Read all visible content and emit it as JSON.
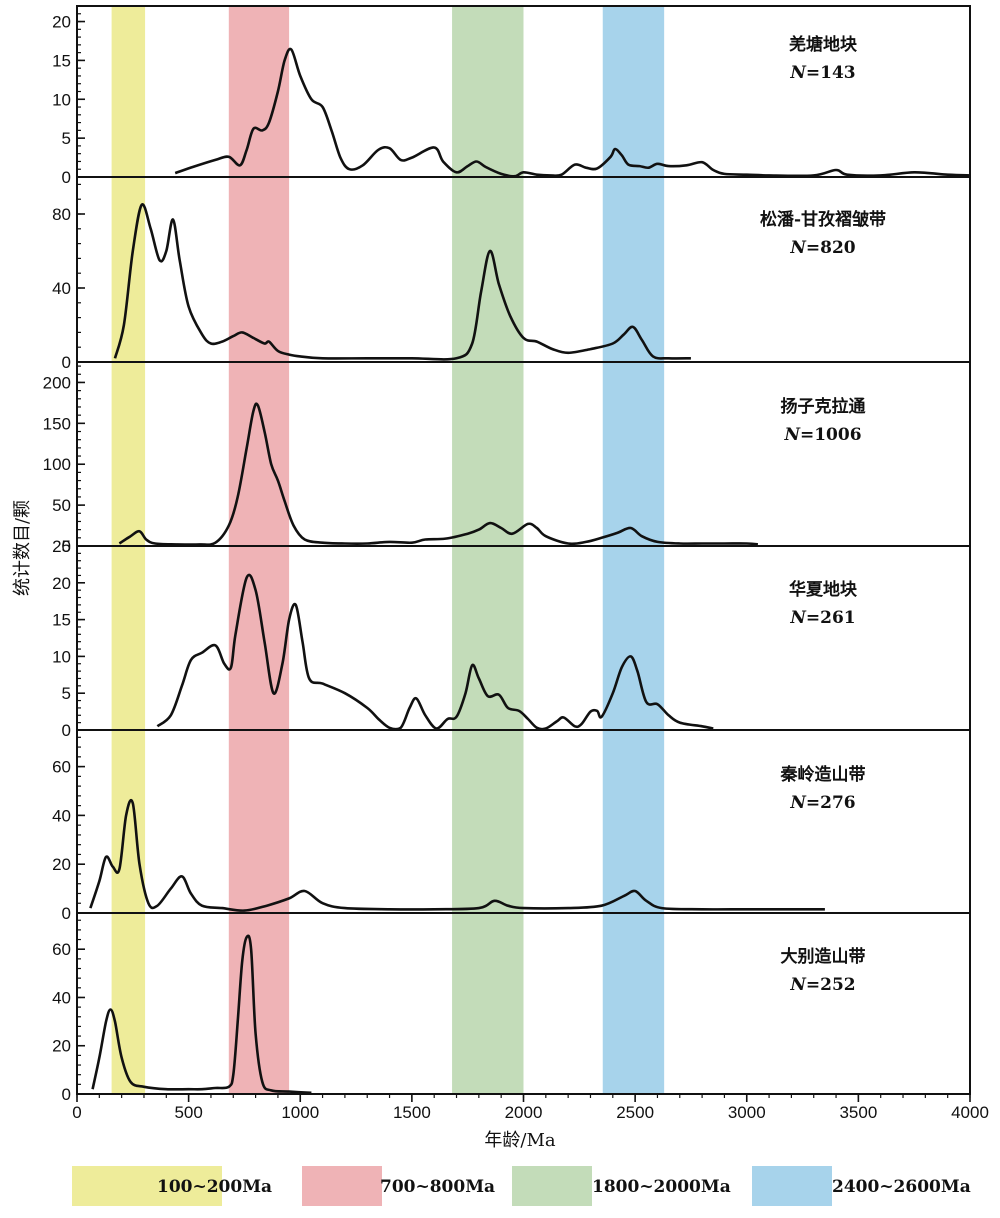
{
  "chart_data": {
    "type": "line",
    "xlabel": "年龄/Ma",
    "ylabel": "统计数目/颗",
    "xlim": [
      0,
      4000
    ],
    "x_ticks": [
      0,
      500,
      1000,
      1500,
      2000,
      2500,
      3000,
      3500,
      4000
    ],
    "bands": [
      {
        "label": "100~200Ma",
        "range": [
          155,
          305
        ],
        "color": "#eeec9a"
      },
      {
        "label": "700~800Ma",
        "range": [
          680,
          950
        ],
        "color": "#efb3b6"
      },
      {
        "label": "1800~2000Ma",
        "range": [
          1680,
          2000
        ],
        "color": "#c3dcb9"
      },
      {
        "label": "2400~2600Ma",
        "range": [
          2355,
          2630
        ],
        "color": "#a7d3eb"
      }
    ],
    "panels": [
      {
        "name": "羌塘地块",
        "n_label": "N",
        "n_value": "=143",
        "ylim": [
          0,
          22
        ],
        "y_ticks": [
          0,
          5,
          10,
          15,
          20
        ],
        "curve": [
          [
            440,
            0.5
          ],
          [
            520,
            1.3
          ],
          [
            620,
            2.2
          ],
          [
            680,
            2.6
          ],
          [
            730,
            1.5
          ],
          [
            760,
            3.5
          ],
          [
            790,
            6.2
          ],
          [
            830,
            6.0
          ],
          [
            860,
            7.0
          ],
          [
            900,
            11
          ],
          [
            930,
            15
          ],
          [
            960,
            16.4
          ],
          [
            1000,
            13
          ],
          [
            1050,
            10
          ],
          [
            1100,
            9
          ],
          [
            1140,
            6
          ],
          [
            1180,
            2.5
          ],
          [
            1220,
            1
          ],
          [
            1280,
            1.5
          ],
          [
            1350,
            3.5
          ],
          [
            1400,
            3.7
          ],
          [
            1450,
            2.2
          ],
          [
            1500,
            2.5
          ],
          [
            1600,
            3.8
          ],
          [
            1640,
            2
          ],
          [
            1700,
            0.6
          ],
          [
            1750,
            1.4
          ],
          [
            1790,
            2
          ],
          [
            1830,
            1.3
          ],
          [
            1900,
            0.4
          ],
          [
            1960,
            0.1
          ],
          [
            2000,
            0.6
          ],
          [
            2060,
            0.3
          ],
          [
            2120,
            0.2
          ],
          [
            2170,
            0.3
          ],
          [
            2230,
            1.6
          ],
          [
            2280,
            1.2
          ],
          [
            2330,
            1.1
          ],
          [
            2390,
            2.6
          ],
          [
            2410,
            3.6
          ],
          [
            2440,
            2.8
          ],
          [
            2470,
            1.6
          ],
          [
            2520,
            1.4
          ],
          [
            2560,
            1.2
          ],
          [
            2600,
            1.7
          ],
          [
            2650,
            1.4
          ],
          [
            2730,
            1.5
          ],
          [
            2800,
            1.9
          ],
          [
            2850,
            0.9
          ],
          [
            2900,
            0.4
          ],
          [
            3000,
            0.3
          ],
          [
            3100,
            0.2
          ],
          [
            3300,
            0.2
          ],
          [
            3400,
            0.9
          ],
          [
            3450,
            0.3
          ],
          [
            3600,
            0.2
          ],
          [
            3750,
            0.6
          ],
          [
            3900,
            0.3
          ],
          [
            4000,
            0.2
          ]
        ]
      },
      {
        "name": "松潘-甘孜褶皱带",
        "n_label": "N",
        "n_value": "=820",
        "ylim": [
          0,
          100
        ],
        "y_ticks": [
          0,
          40,
          80
        ],
        "curve": [
          [
            170,
            2
          ],
          [
            210,
            20
          ],
          [
            250,
            60
          ],
          [
            290,
            85
          ],
          [
            330,
            72
          ],
          [
            370,
            55
          ],
          [
            400,
            60
          ],
          [
            430,
            77
          ],
          [
            460,
            55
          ],
          [
            500,
            30
          ],
          [
            560,
            15
          ],
          [
            600,
            10
          ],
          [
            650,
            11
          ],
          [
            700,
            14
          ],
          [
            740,
            16
          ],
          [
            790,
            13
          ],
          [
            840,
            10
          ],
          [
            860,
            11
          ],
          [
            900,
            6
          ],
          [
            950,
            4
          ],
          [
            1000,
            3
          ],
          [
            1100,
            2
          ],
          [
            1300,
            2
          ],
          [
            1500,
            2
          ],
          [
            1700,
            2
          ],
          [
            1770,
            10
          ],
          [
            1810,
            38
          ],
          [
            1850,
            60
          ],
          [
            1890,
            42
          ],
          [
            1940,
            25
          ],
          [
            2000,
            13
          ],
          [
            2060,
            11
          ],
          [
            2130,
            7
          ],
          [
            2200,
            5
          ],
          [
            2300,
            7
          ],
          [
            2400,
            10
          ],
          [
            2450,
            15
          ],
          [
            2490,
            19
          ],
          [
            2530,
            12
          ],
          [
            2580,
            3
          ],
          [
            2650,
            2
          ],
          [
            2750,
            2
          ]
        ]
      },
      {
        "name": "扬子克拉通",
        "n_label": "N",
        "n_value": "=1006",
        "ylim": [
          0,
          225
        ],
        "y_ticks": [
          0,
          50,
          100,
          150,
          200
        ],
        "curve": [
          [
            190,
            3
          ],
          [
            240,
            12
          ],
          [
            280,
            18
          ],
          [
            310,
            8
          ],
          [
            350,
            3
          ],
          [
            450,
            2
          ],
          [
            550,
            2
          ],
          [
            620,
            4
          ],
          [
            680,
            25
          ],
          [
            720,
            60
          ],
          [
            760,
            120
          ],
          [
            790,
            165
          ],
          [
            810,
            172
          ],
          [
            840,
            140
          ],
          [
            870,
            100
          ],
          [
            900,
            80
          ],
          [
            930,
            55
          ],
          [
            970,
            25
          ],
          [
            1020,
            8
          ],
          [
            1100,
            4
          ],
          [
            1200,
            3
          ],
          [
            1300,
            3
          ],
          [
            1400,
            5
          ],
          [
            1500,
            4
          ],
          [
            1560,
            8
          ],
          [
            1650,
            9
          ],
          [
            1750,
            15
          ],
          [
            1800,
            20
          ],
          [
            1850,
            28
          ],
          [
            1900,
            22
          ],
          [
            1950,
            15
          ],
          [
            2020,
            27
          ],
          [
            2060,
            22
          ],
          [
            2100,
            12
          ],
          [
            2200,
            3
          ],
          [
            2280,
            5
          ],
          [
            2350,
            10
          ],
          [
            2420,
            16
          ],
          [
            2480,
            22
          ],
          [
            2530,
            12
          ],
          [
            2600,
            5
          ],
          [
            2700,
            3
          ],
          [
            2800,
            3
          ],
          [
            2900,
            3
          ],
          [
            3000,
            3
          ],
          [
            3050,
            2
          ]
        ]
      },
      {
        "name": "华夏地块",
        "n_label": "N",
        "n_value": "=261",
        "ylim": [
          0,
          25
        ],
        "y_ticks": [
          0,
          5,
          10,
          15,
          20,
          25
        ],
        "curve": [
          [
            360,
            0.5
          ],
          [
            420,
            2
          ],
          [
            470,
            6
          ],
          [
            510,
            9.5
          ],
          [
            560,
            10.5
          ],
          [
            620,
            11.5
          ],
          [
            660,
            9
          ],
          [
            690,
            8.5
          ],
          [
            710,
            13
          ],
          [
            760,
            20.7
          ],
          [
            800,
            19
          ],
          [
            840,
            12
          ],
          [
            880,
            5
          ],
          [
            920,
            9
          ],
          [
            950,
            15
          ],
          [
            980,
            17
          ],
          [
            1010,
            12
          ],
          [
            1040,
            7
          ],
          [
            1100,
            6.3
          ],
          [
            1200,
            5
          ],
          [
            1300,
            3
          ],
          [
            1350,
            1.5
          ],
          [
            1400,
            0.3
          ],
          [
            1450,
            0.3
          ],
          [
            1490,
            3
          ],
          [
            1520,
            4.3
          ],
          [
            1560,
            2
          ],
          [
            1610,
            0.2
          ],
          [
            1660,
            1.5
          ],
          [
            1700,
            1.8
          ],
          [
            1740,
            5
          ],
          [
            1770,
            8.8
          ],
          [
            1800,
            7
          ],
          [
            1840,
            4.6
          ],
          [
            1890,
            4.8
          ],
          [
            1930,
            3
          ],
          [
            1980,
            2.6
          ],
          [
            2020,
            1.5
          ],
          [
            2060,
            0.3
          ],
          [
            2100,
            0.2
          ],
          [
            2150,
            1.2
          ],
          [
            2180,
            1.7
          ],
          [
            2230,
            0.5
          ],
          [
            2260,
            0.8
          ],
          [
            2300,
            2.5
          ],
          [
            2330,
            2.6
          ],
          [
            2350,
            1.8
          ],
          [
            2400,
            5
          ],
          [
            2440,
            8.5
          ],
          [
            2480,
            10
          ],
          [
            2510,
            8
          ],
          [
            2550,
            3.8
          ],
          [
            2600,
            3.5
          ],
          [
            2650,
            2
          ],
          [
            2700,
            1
          ],
          [
            2800,
            0.5
          ],
          [
            2850,
            0.2
          ]
        ]
      },
      {
        "name": "秦岭造山带",
        "n_label": "N",
        "n_value": "=276",
        "ylim": [
          0,
          75
        ],
        "y_ticks": [
          0,
          20,
          40,
          60
        ],
        "curve": [
          [
            60,
            2
          ],
          [
            100,
            13
          ],
          [
            130,
            23
          ],
          [
            160,
            19
          ],
          [
            190,
            18
          ],
          [
            220,
            40
          ],
          [
            250,
            45
          ],
          [
            280,
            20
          ],
          [
            320,
            4
          ],
          [
            360,
            3
          ],
          [
            420,
            10
          ],
          [
            470,
            15
          ],
          [
            510,
            8
          ],
          [
            560,
            3
          ],
          [
            650,
            2
          ],
          [
            750,
            1
          ],
          [
            850,
            3
          ],
          [
            950,
            6
          ],
          [
            1020,
            9
          ],
          [
            1100,
            4
          ],
          [
            1200,
            2
          ],
          [
            1400,
            1.5
          ],
          [
            1600,
            1.5
          ],
          [
            1800,
            2
          ],
          [
            1870,
            5
          ],
          [
            1930,
            3
          ],
          [
            2000,
            2
          ],
          [
            2200,
            2
          ],
          [
            2350,
            3
          ],
          [
            2450,
            7
          ],
          [
            2500,
            9
          ],
          [
            2550,
            5
          ],
          [
            2620,
            2
          ],
          [
            2800,
            1.5
          ],
          [
            3000,
            1.5
          ],
          [
            3200,
            1.5
          ],
          [
            3350,
            1.5
          ]
        ]
      },
      {
        "name": "大别造山带",
        "n_label": "N",
        "n_value": "=252",
        "ylim": [
          0,
          75
        ],
        "y_ticks": [
          0,
          20,
          40,
          60
        ],
        "curve": [
          [
            70,
            2
          ],
          [
            100,
            15
          ],
          [
            130,
            30
          ],
          [
            150,
            35
          ],
          [
            170,
            30
          ],
          [
            200,
            15
          ],
          [
            240,
            5
          ],
          [
            300,
            3
          ],
          [
            400,
            2
          ],
          [
            500,
            2
          ],
          [
            560,
            2
          ],
          [
            620,
            2.5
          ],
          [
            680,
            3
          ],
          [
            700,
            8
          ],
          [
            720,
            30
          ],
          [
            740,
            55
          ],
          [
            760,
            65
          ],
          [
            780,
            60
          ],
          [
            800,
            25
          ],
          [
            830,
            5
          ],
          [
            870,
            1.5
          ],
          [
            950,
            1
          ],
          [
            1050,
            0.5
          ]
        ]
      }
    ]
  },
  "colors": {
    "axis": "#111111",
    "curve": "#111111"
  }
}
